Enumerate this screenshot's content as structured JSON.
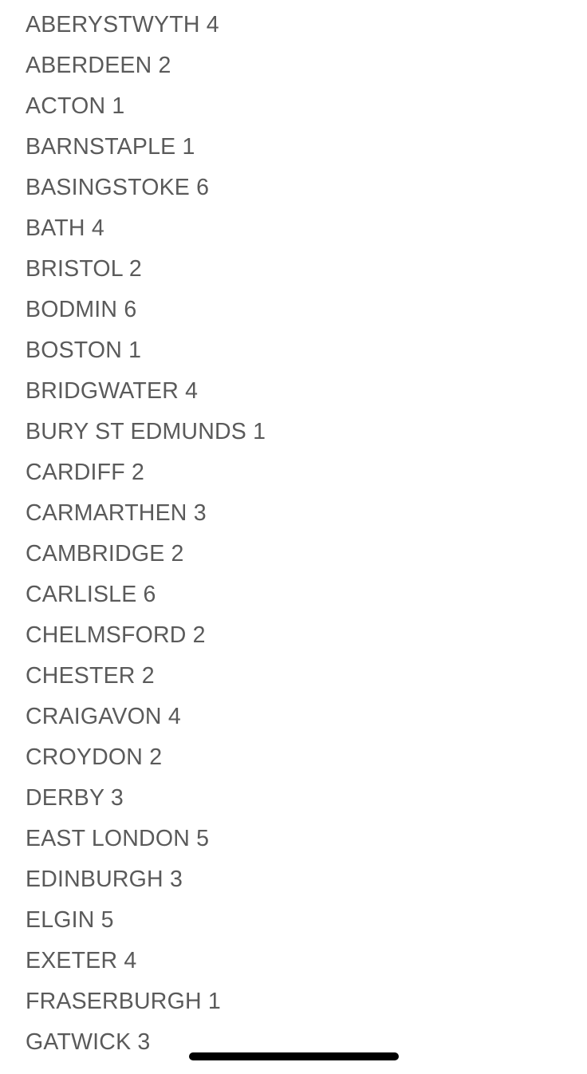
{
  "locations": [
    {
      "name": "ABERYSTWYTH",
      "count": "4"
    },
    {
      "name": "ABERDEEN",
      "count": "2"
    },
    {
      "name": "ACTON",
      "count": "1"
    },
    {
      "name": "BARNSTAPLE",
      "count": "1"
    },
    {
      "name": "BASINGSTOKE",
      "count": "6"
    },
    {
      "name": "BATH",
      "count": "4"
    },
    {
      "name": "BRISTOL",
      "count": "2"
    },
    {
      "name": "BODMIN",
      "count": "6"
    },
    {
      "name": "BOSTON",
      "count": "1"
    },
    {
      "name": "BRIDGWATER",
      "count": "4"
    },
    {
      "name": "BURY ST EDMUNDS",
      "count": "1"
    },
    {
      "name": "CARDIFF",
      "count": "2"
    },
    {
      "name": "CARMARTHEN",
      "count": "3"
    },
    {
      "name": "CAMBRIDGE",
      "count": "2"
    },
    {
      "name": "CARLISLE",
      "count": "6"
    },
    {
      "name": "CHELMSFORD",
      "count": "2"
    },
    {
      "name": "CHESTER",
      "count": "2"
    },
    {
      "name": "CRAIGAVON",
      "count": "4"
    },
    {
      "name": "CROYDON",
      "count": "2"
    },
    {
      "name": "DERBY",
      "count": "3"
    },
    {
      "name": "EAST LONDON",
      "count": "5"
    },
    {
      "name": "EDINBURGH",
      "count": "3"
    },
    {
      "name": "ELGIN",
      "count": "5"
    },
    {
      "name": "EXETER",
      "count": "4"
    },
    {
      "name": "FRASERBURGH",
      "count": "1"
    },
    {
      "name": "GATWICK",
      "count": "3"
    }
  ]
}
